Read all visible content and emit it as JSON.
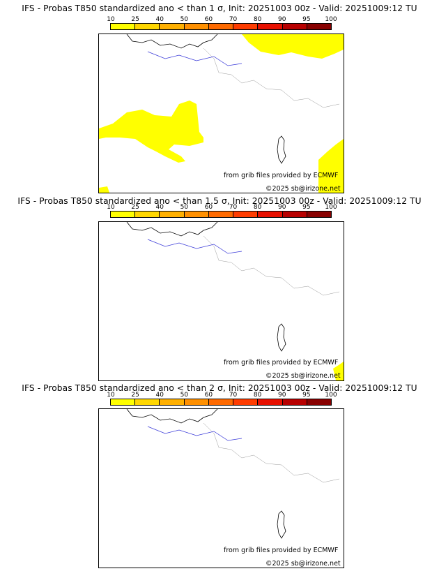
{
  "legend": {
    "ticks": [
      "10",
      "25",
      "40",
      "50",
      "60",
      "70",
      "80",
      "90",
      "95",
      "100"
    ],
    "colors": [
      "#ffff00",
      "#ffd700",
      "#ffb000",
      "#ff9000",
      "#ff6a00",
      "#ff3c00",
      "#e81000",
      "#b80000",
      "#880000",
      "#500000"
    ]
  },
  "panels": [
    {
      "title": "IFS - Probas T850  standardized ano < than 1 σ, Init: 20251003 00z - Valid: 20251009:12 TU",
      "credit": "from grib files provided by ECMWF",
      "copyright": "©2025 sb@irizone.net",
      "probability_areas": [
        "north-east-belgium-germany",
        "western-france-atlantic",
        "south-east-corsica-sardinia",
        "south-west-corner"
      ]
    },
    {
      "title": "IFS - Probas T850  standardized ano < than 1.5 σ, Init: 20251003 00z - Valid: 20251009:12 TU",
      "credit": "from grib files provided by ECMWF",
      "copyright": "©2025 sb@irizone.net",
      "probability_areas": [
        "south-east-sardinia-tip"
      ]
    },
    {
      "title": "IFS - Probas T850  standardized ano < than 2 σ, Init: 20251003 00z - Valid: 20251009:12 TU",
      "credit": "from grib files provided by ECMWF",
      "copyright": "©2025 sb@irizone.net",
      "probability_areas": []
    }
  ]
}
